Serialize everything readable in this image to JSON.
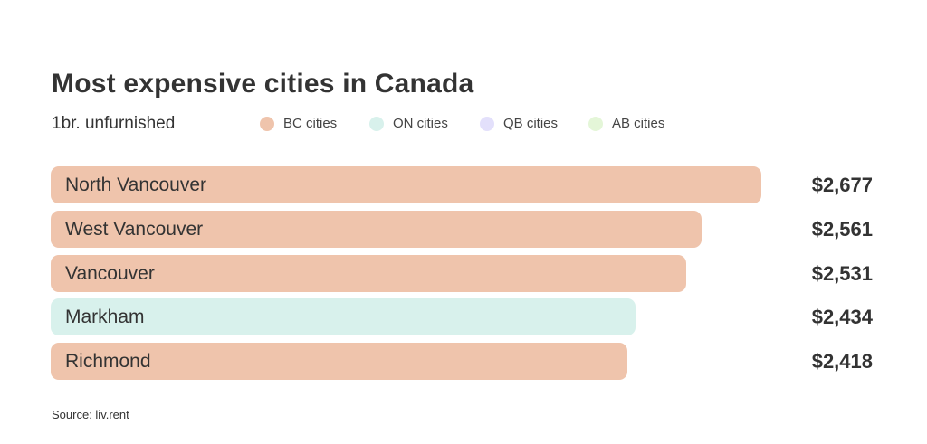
{
  "title": "Most expensive cities in Canada",
  "subtitle": "1br. unfurnished",
  "legend": [
    {
      "label": "BC cities",
      "color": "#efc4ac"
    },
    {
      "label": "ON cities",
      "color": "#d8f1ec"
    },
    {
      "label": "QB cities",
      "color": "#e3e0fb"
    },
    {
      "label": "AB cities",
      "color": "#e4f6d8"
    }
  ],
  "source": "Source: liv.rent",
  "chart_data": {
    "type": "bar",
    "orientation": "horizontal",
    "title": "Most expensive cities in Canada",
    "subtitle": "1br. unfurnished",
    "categories": [
      "North Vancouver",
      "West Vancouver",
      "Vancouver",
      "Markham",
      "Richmond"
    ],
    "values": [
      2677,
      2561,
      2531,
      2434,
      2418
    ],
    "value_labels": [
      "$2,677",
      "$2,561",
      "$2,531",
      "$2,434",
      "$2,418"
    ],
    "groups": [
      "BC cities",
      "BC cities",
      "BC cities",
      "ON cities",
      "BC cities"
    ],
    "legend_position": "top",
    "grid": false
  }
}
